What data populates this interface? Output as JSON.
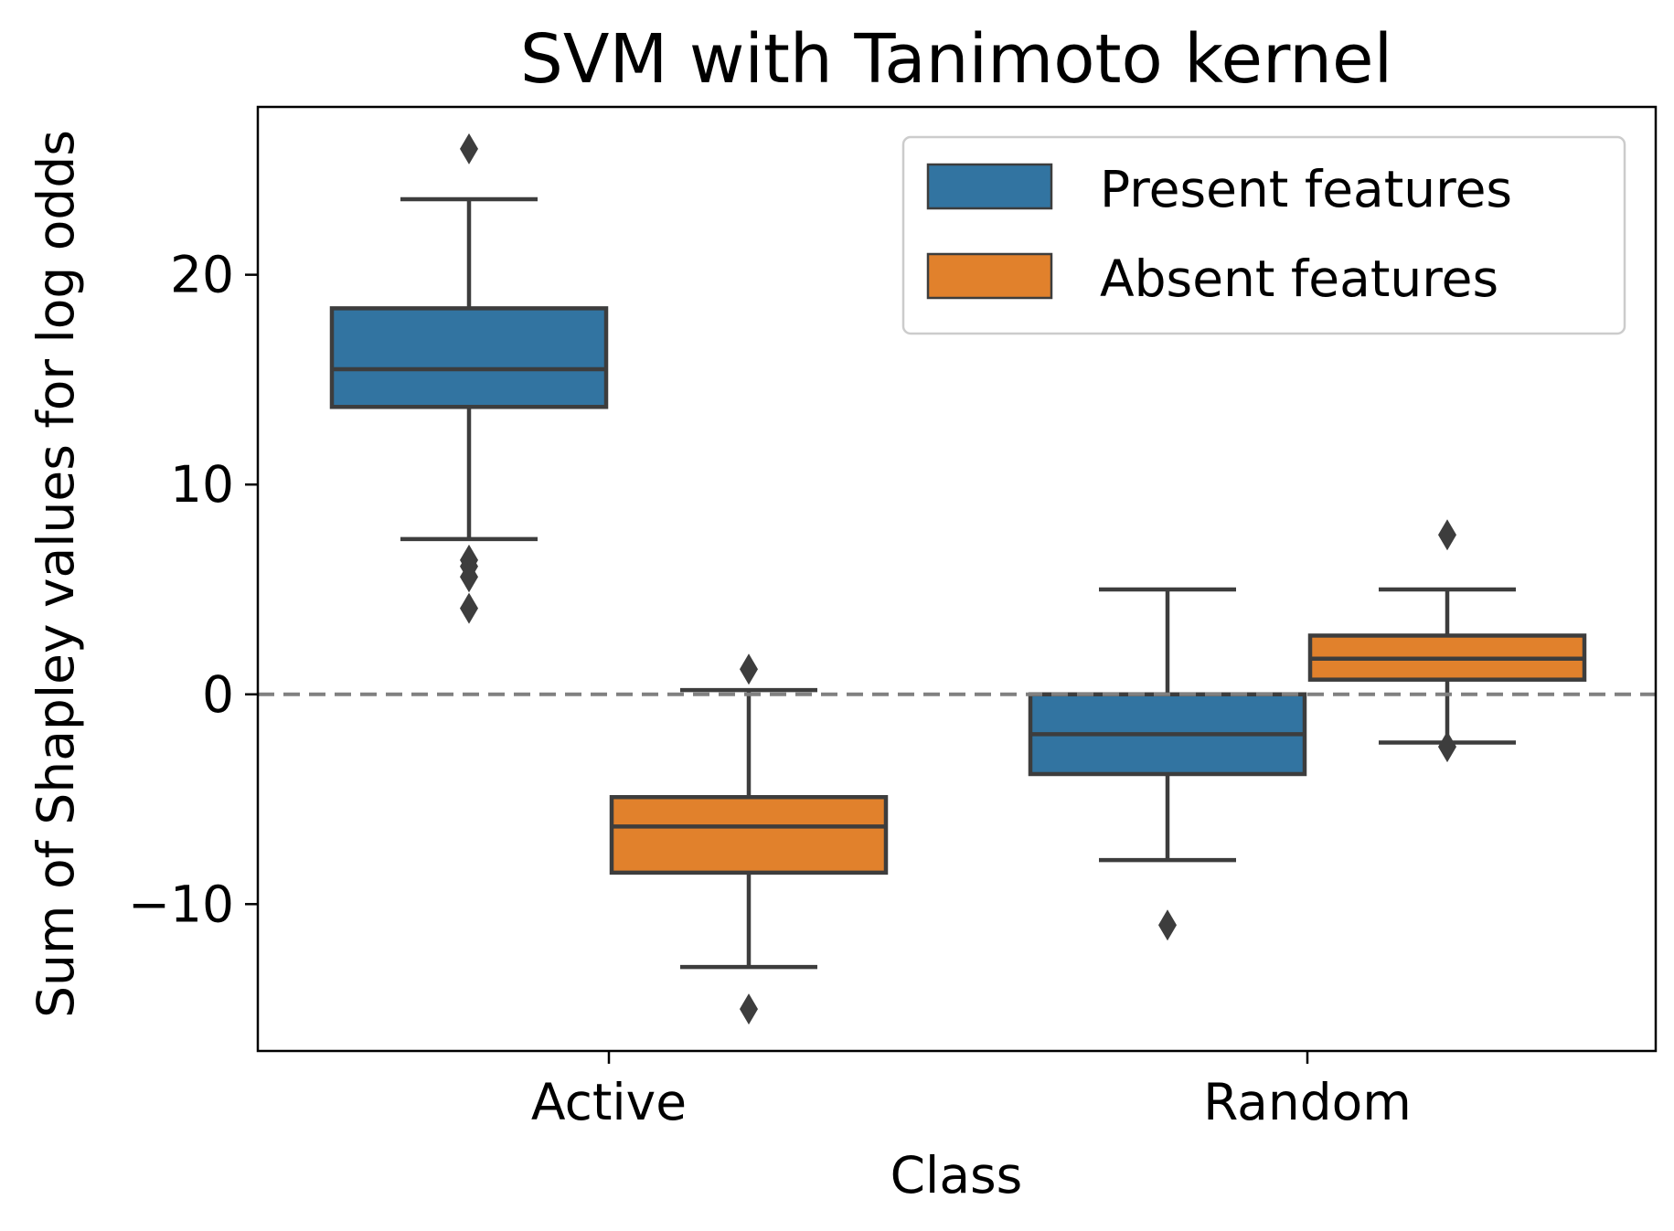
{
  "chart_data": {
    "type": "box",
    "title": "SVM with Tanimoto kernel",
    "xlabel": "Class",
    "ylabel": "Sum of Shapley values for log odds",
    "categories": [
      "Active",
      "Random"
    ],
    "ylim": [
      -17,
      28
    ],
    "yticks": [
      -10,
      0,
      10,
      20
    ],
    "ytick_labels": [
      "−10",
      "0",
      "10",
      "20"
    ],
    "reference_line": {
      "y": 0,
      "style": "dashed",
      "color": "#808080"
    },
    "legend": {
      "position": "top-right"
    },
    "series": [
      {
        "name": "Present features",
        "color": "#3274a1",
        "boxes": [
          {
            "category": "Active",
            "whisker_low": 7.4,
            "q1": 13.7,
            "median": 15.5,
            "q3": 18.4,
            "whisker_high": 23.6,
            "outliers": [
              26.0,
              6.4,
              6.1,
              5.6,
              4.1
            ]
          },
          {
            "category": "Random",
            "whisker_low": -7.9,
            "q1": -3.8,
            "median": -1.9,
            "q3": 0.0,
            "whisker_high": 5.0,
            "outliers": [
              -11.0
            ]
          }
        ]
      },
      {
        "name": "Absent features",
        "color": "#e1812c",
        "boxes": [
          {
            "category": "Active",
            "whisker_low": -13.0,
            "q1": -8.5,
            "median": -6.3,
            "q3": -4.9,
            "whisker_high": 0.2,
            "outliers": [
              1.2,
              -15.0
            ]
          },
          {
            "category": "Random",
            "whisker_low": -2.3,
            "q1": 0.7,
            "median": 1.7,
            "q3": 2.8,
            "whisker_high": 5.0,
            "outliers": [
              7.6,
              -2.5
            ]
          }
        ]
      }
    ]
  }
}
